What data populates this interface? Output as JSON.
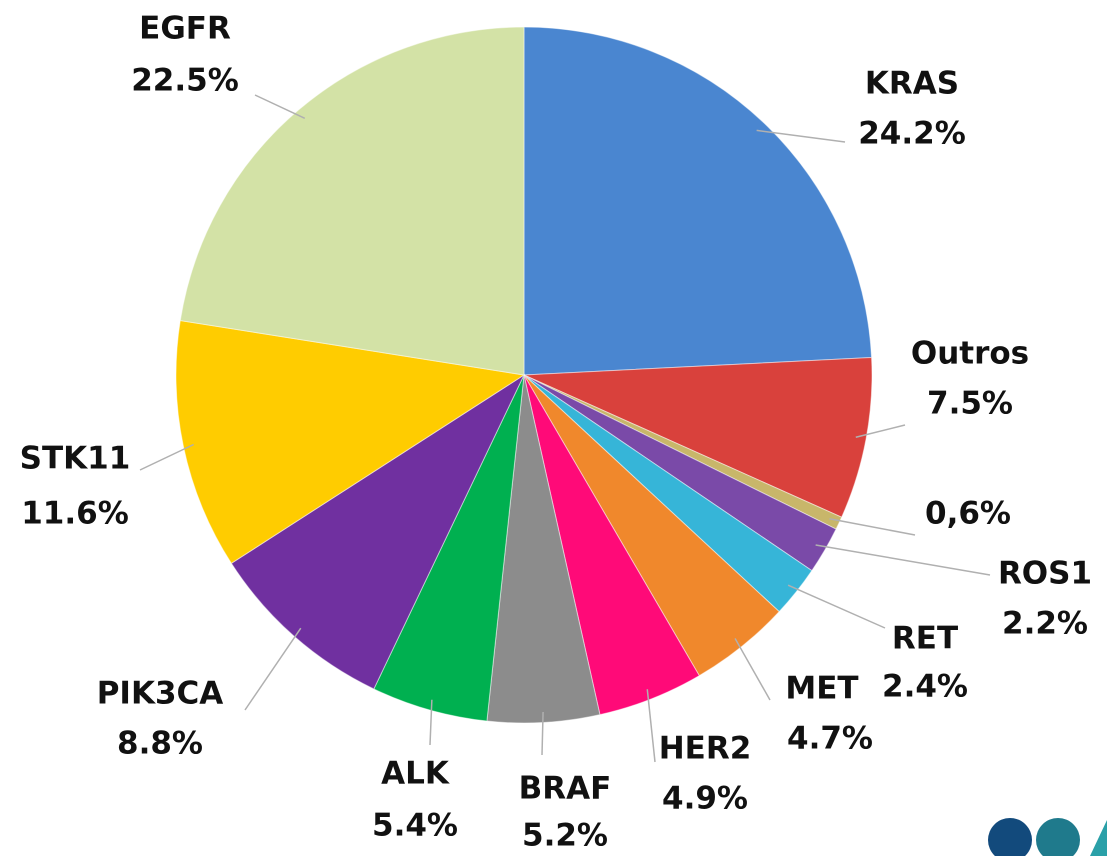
{
  "chart_data": {
    "type": "pie",
    "categories": [
      "KRAS",
      "Outros",
      null,
      "ROS1",
      "RET",
      "MET",
      "HER2",
      "BRAF",
      "ALK",
      "PIK3CA",
      "STK11",
      "EGFR"
    ],
    "values": [
      24.2,
      7.5,
      0.6,
      2.2,
      2.4,
      4.7,
      4.9,
      5.2,
      5.4,
      8.8,
      11.6,
      22.5
    ],
    "value_labels": [
      "24.2%",
      "7.5%",
      "0,6%",
      "2.2%",
      "2.4%",
      "4.7%",
      "4.9%",
      "5.2%",
      "5.4%",
      "8.8%",
      "11.6%",
      "22.5%"
    ],
    "colors": [
      "#4a86d0",
      "#d9413c",
      "#c8b66a",
      "#7a4aa8",
      "#36b5d8",
      "#f0882c",
      "#ff0a78",
      "#8c8c8c",
      "#00b050",
      "#7030a0",
      "#ffcc00",
      "#d3e2a6"
    ]
  }
}
